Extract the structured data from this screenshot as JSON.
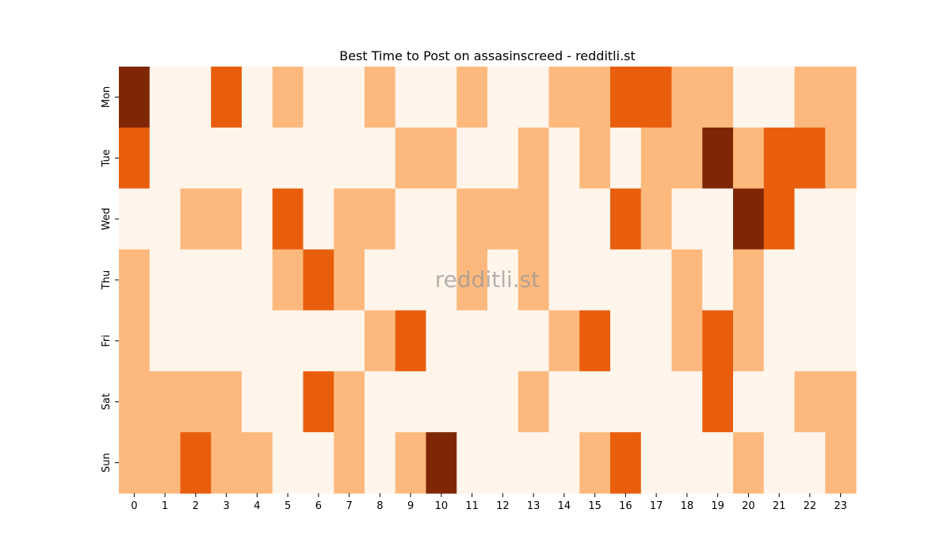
{
  "chart_data": {
    "type": "heatmap",
    "title": "Best Time to Post on assasinscreed - redditli.st",
    "watermark": "redditli.st",
    "xlabel": "",
    "ylabel": "",
    "x": [
      "0",
      "1",
      "2",
      "3",
      "4",
      "5",
      "6",
      "7",
      "8",
      "9",
      "10",
      "11",
      "12",
      "13",
      "14",
      "15",
      "16",
      "17",
      "18",
      "19",
      "20",
      "21",
      "22",
      "23"
    ],
    "y": [
      "Mon",
      "Tue",
      "Wed",
      "Thu",
      "Fri",
      "Sat",
      "Sun"
    ],
    "values": [
      [
        3,
        0,
        0,
        2,
        0,
        1,
        0,
        0,
        1,
        0,
        0,
        1,
        0,
        0,
        1,
        1,
        2,
        2,
        1,
        1,
        0,
        0,
        1,
        1
      ],
      [
        2,
        0,
        0,
        0,
        0,
        0,
        0,
        0,
        0,
        1,
        1,
        0,
        0,
        1,
        0,
        1,
        0,
        1,
        1,
        3,
        1,
        2,
        2,
        1
      ],
      [
        0,
        0,
        1,
        1,
        0,
        2,
        0,
        1,
        1,
        0,
        0,
        1,
        1,
        1,
        0,
        0,
        2,
        1,
        0,
        0,
        3,
        2,
        0,
        0
      ],
      [
        1,
        0,
        0,
        0,
        0,
        1,
        2,
        1,
        0,
        0,
        0,
        1,
        0,
        1,
        0,
        0,
        0,
        0,
        1,
        0,
        1,
        0,
        0,
        0
      ],
      [
        1,
        0,
        0,
        0,
        0,
        0,
        0,
        0,
        1,
        2,
        0,
        0,
        0,
        0,
        1,
        2,
        0,
        0,
        1,
        2,
        1,
        0,
        0,
        0
      ],
      [
        1,
        1,
        1,
        1,
        0,
        0,
        2,
        1,
        0,
        0,
        0,
        0,
        0,
        1,
        0,
        0,
        0,
        0,
        0,
        2,
        0,
        0,
        1,
        1
      ],
      [
        1,
        1,
        2,
        1,
        1,
        0,
        0,
        1,
        0,
        1,
        3,
        0,
        0,
        0,
        0,
        1,
        2,
        0,
        0,
        0,
        1,
        0,
        0,
        1
      ]
    ],
    "colors": [
      "#fff5eb",
      "#fdb97d",
      "#e95e0d",
      "#7f2704"
    ],
    "colorbar": false,
    "grid": false
  }
}
